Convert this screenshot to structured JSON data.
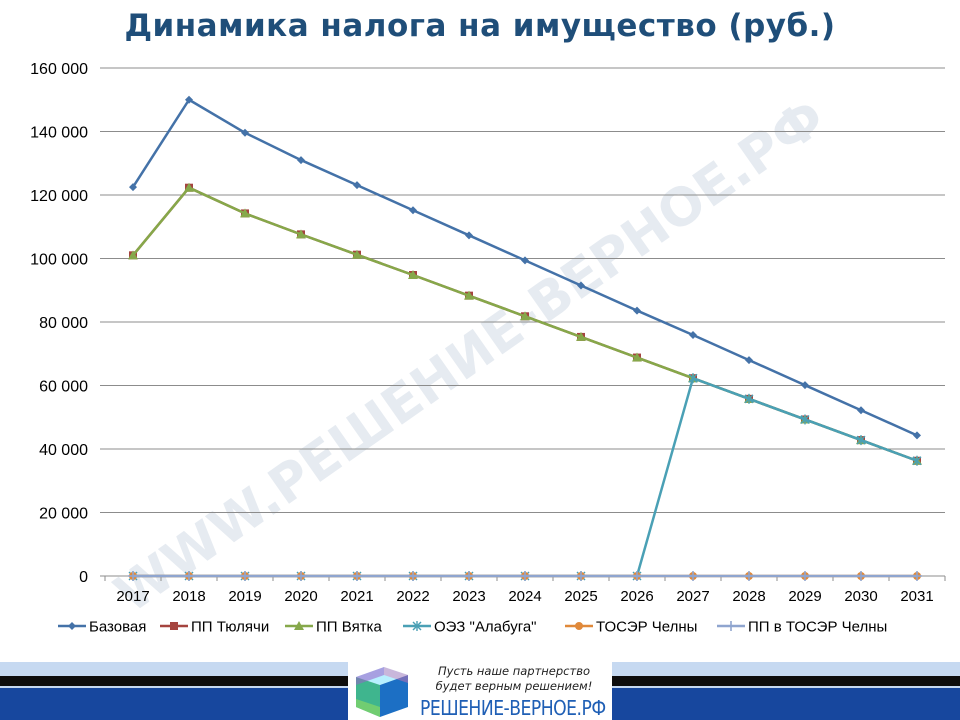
{
  "slide": {
    "title": "Динамика налога на имущество (руб.)"
  },
  "watermark": "WWW.РЕШЕНИЕ-ВЕРНОЕ.РФ",
  "footer": {
    "slogan_line1": "Пусть наше партнерство",
    "slogan_line2": "будет верным решением!",
    "logo_text": "РЕШЕНИЕ-ВЕРНОЕ.РФ"
  },
  "chart_data": {
    "type": "line",
    "title": "Динамика налога на имущество (руб.)",
    "xlabel": "",
    "ylabel": "",
    "ylim": [
      0,
      160000
    ],
    "yticks": [
      0,
      20000,
      40000,
      60000,
      80000,
      100000,
      120000,
      140000,
      160000
    ],
    "ytick_labels": [
      "0",
      "20 000",
      "40 000",
      "60 000",
      "80 000",
      "100 000",
      "120 000",
      "140 000",
      "160 000"
    ],
    "grid": true,
    "legend_position": "bottom",
    "categories": [
      "2017",
      "2018",
      "2019",
      "2020",
      "2021",
      "2022",
      "2023",
      "2024",
      "2025",
      "2026",
      "2027",
      "2028",
      "2029",
      "2030",
      "2031"
    ],
    "series": [
      {
        "name": "Базовая",
        "color": "#4472a8",
        "marker": "diamond",
        "values": [
          122500,
          150000,
          139600,
          131000,
          123100,
          115200,
          107300,
          99400,
          91500,
          83600,
          75900,
          68000,
          60100,
          52200,
          44300
        ]
      },
      {
        "name": "ПП Тюлячи",
        "color": "#a5443f",
        "marker": "square",
        "values": [
          101000,
          122300,
          114200,
          107600,
          101200,
          94800,
          88300,
          81800,
          75300,
          68800,
          62300,
          55800,
          49300,
          42800,
          36300
        ]
      },
      {
        "name": "ПП Вятка",
        "color": "#86a84a",
        "marker": "triangle",
        "values": [
          101000,
          122300,
          114200,
          107600,
          101200,
          94800,
          88300,
          81800,
          75300,
          68800,
          62300,
          55800,
          49300,
          42800,
          36300
        ]
      },
      {
        "name": "ОЭЗ \"Алабуга\"",
        "color": "#4aa0b5",
        "marker": "star",
        "values": [
          0,
          0,
          0,
          0,
          0,
          0,
          0,
          0,
          0,
          0,
          62300,
          55800,
          49300,
          42800,
          36300
        ]
      },
      {
        "name": "ТОСЭР Челны",
        "color": "#e0893a",
        "marker": "circle",
        "values": [
          0,
          0,
          0,
          0,
          0,
          0,
          0,
          0,
          0,
          0,
          0,
          0,
          0,
          0,
          0
        ]
      },
      {
        "name": "ПП в ТОСЭР Челны",
        "color": "#8fa5cf",
        "marker": "plus",
        "values": [
          0,
          0,
          0,
          0,
          0,
          0,
          0,
          0,
          0,
          0,
          0,
          0,
          0,
          0,
          0
        ]
      }
    ]
  }
}
